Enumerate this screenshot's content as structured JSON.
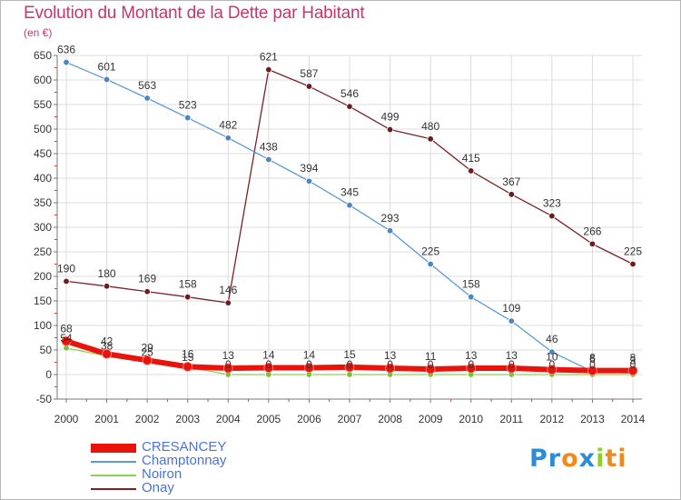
{
  "chart_data": {
    "type": "line",
    "title": "Evolution du Montant de la Dette par Habitant",
    "subtitle": "(en €)",
    "xlabel": "",
    "ylabel": "(en €)",
    "ylim": [
      -50,
      650
    ],
    "yticks": [
      -50,
      0,
      50,
      100,
      150,
      200,
      250,
      300,
      350,
      400,
      450,
      500,
      550,
      600,
      650
    ],
    "categories": [
      "2000",
      "2001",
      "2002",
      "2003",
      "2004",
      "2005",
      "2006",
      "2007",
      "2008",
      "2009",
      "2010",
      "2011",
      "2012",
      "2013",
      "2014"
    ],
    "series": [
      {
        "name": "CRESANCEY",
        "color": "#e8140c",
        "values": [
          68,
          42,
          29,
          16,
          13,
          14,
          14,
          15,
          13,
          11,
          13,
          13,
          10,
          8,
          8
        ],
        "labels": [
          "68",
          "42",
          "29",
          "16",
          "13",
          "14",
          "14",
          "15",
          "13",
          "11",
          "13",
          "13",
          "10",
          "8",
          "8"
        ]
      },
      {
        "name": "Champtonnay",
        "color": "#5b9bd5",
        "values": [
          636,
          601,
          563,
          523,
          482,
          438,
          394,
          345,
          293,
          225,
          158,
          109,
          46,
          6,
          3
        ],
        "labels": [
          "636",
          "601",
          "563",
          "523",
          "482",
          "438",
          "394",
          "345",
          "293",
          "225",
          "158",
          "109",
          "46",
          "6",
          "3"
        ]
      },
      {
        "name": "Noiron",
        "color": "#8fd14f",
        "values": [
          54,
          38,
          25,
          15,
          0,
          0,
          0,
          0,
          0,
          0,
          0,
          0,
          0,
          0,
          0
        ],
        "labels": [
          "54",
          "38",
          "25",
          "15",
          "0",
          "0",
          "0",
          "0",
          "0",
          "0",
          "0",
          "0",
          "0",
          "0",
          "0"
        ]
      },
      {
        "name": "Onay",
        "color": "#7b2228",
        "values": [
          190,
          180,
          169,
          158,
          146,
          621,
          587,
          546,
          499,
          480,
          415,
          367,
          323,
          266,
          225
        ],
        "labels": [
          "190",
          "180",
          "169",
          "158",
          "146",
          "621",
          "587",
          "546",
          "499",
          "480",
          "415",
          "367",
          "323",
          "266",
          "225"
        ]
      }
    ],
    "legend_position": "bottom-left"
  },
  "logo": {
    "parts": [
      "Pr",
      "o",
      "x",
      "i",
      "ti"
    ],
    "colors": [
      "#2e8bd6",
      "#f18a1d",
      "#2e8bd6",
      "#8fcf2a",
      "#f18a1d"
    ]
  }
}
